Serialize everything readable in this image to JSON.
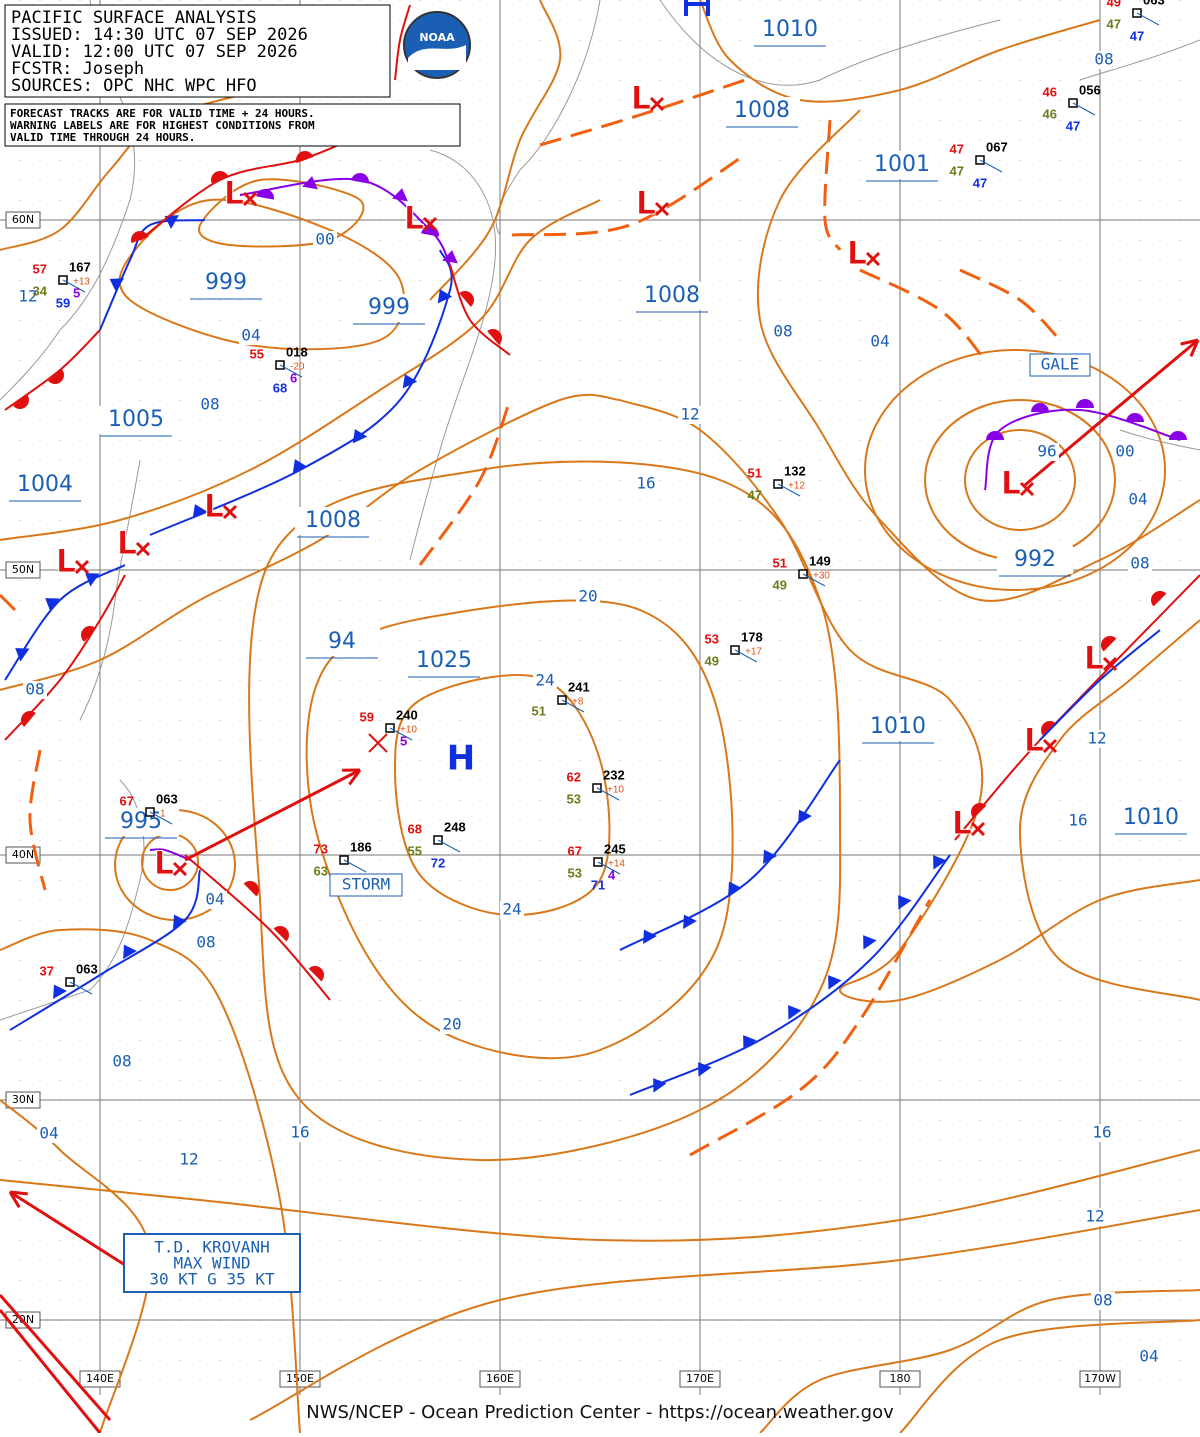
{
  "header": {
    "lines": [
      "PACIFIC SURFACE ANALYSIS",
      "ISSUED: 14:30 UTC 07 SEP 2026",
      "VALID:  12:00 UTC 07 SEP 2026",
      "FCSTR:  Joseph",
      "SOURCES: OPC NHC WPC HFO"
    ]
  },
  "notice": [
    "FORECAST TRACKS ARE FOR VALID TIME + 24 HOURS.",
    "WARNING LABELS ARE FOR HIGHEST CONDITIONS FROM",
    "VALID TIME THROUGH 24 HOURS."
  ],
  "logo": "NOAA",
  "pressure_labels": [
    "1010",
    "1008",
    "1001",
    "999",
    "999",
    "1008",
    "1005",
    "1004",
    "1008",
    "94",
    "1025",
    "992",
    "1010",
    "995",
    "1010"
  ],
  "isobar_labels": [
    "08",
    "00",
    "04",
    "08",
    "12",
    "16",
    "08",
    "04",
    "96",
    "00",
    "04",
    "08",
    "12",
    "20",
    "08",
    "24",
    "24",
    "04",
    "08",
    "12",
    "16",
    "20",
    "08",
    "04",
    "16",
    "12",
    "16",
    "12",
    "08",
    "04"
  ],
  "low_symbol": "L",
  "high_symbol": "H",
  "warnings": [
    "GALE",
    "STORM"
  ],
  "krovanh_box": [
    "T.D. KROVANH",
    "MAX WIND",
    "30 KT G 35 KT"
  ],
  "grid_labels": {
    "lat": [
      "60N",
      "50N",
      "40N",
      "30N",
      "20N"
    ],
    "lon": [
      "140E",
      "150E",
      "160E",
      "170E",
      "180",
      "170W"
    ]
  },
  "stations": [
    {
      "red": "57",
      "black": "167",
      "tendency": "+13",
      "green": "34",
      "purple": "5",
      "blue": "59"
    },
    {
      "red": "55",
      "black": "018",
      "tendency": "-20",
      "purple": "6",
      "blue": "68"
    },
    {
      "red": "51",
      "black": "132",
      "tendency": "+12",
      "green": "47"
    },
    {
      "red": "51",
      "black": "149",
      "tendency": "+30",
      "green": "49"
    },
    {
      "red": "53",
      "black": "178",
      "tendency": "+17",
      "green": "49"
    },
    {
      "black": "241",
      "tendency": "+8",
      "green": "51"
    },
    {
      "red": "59",
      "black": "240",
      "tendency": "+10",
      "purple": "5"
    },
    {
      "red": "62",
      "black": "232",
      "tendency": "+10",
      "green": "53"
    },
    {
      "red": "68",
      "black": "248",
      "green": "55",
      "blue": "72"
    },
    {
      "red": "67",
      "black": "245",
      "tendency": "+14",
      "green": "53",
      "blue": "71",
      "purple": "4"
    },
    {
      "red": "73",
      "black": "186",
      "green": "63"
    },
    {
      "red": "67",
      "black": "063",
      "tendency": "1"
    },
    {
      "red": "37",
      "black": "063"
    },
    {
      "red": "47",
      "black": "067",
      "green": "47",
      "blue": "47"
    },
    {
      "red": "46",
      "black": "056",
      "green": "46",
      "blue": "47"
    },
    {
      "red": "49",
      "black": "063",
      "green": "47",
      "blue": "47"
    }
  ],
  "footer": "NWS/NCEP - Ocean Prediction Center - https://ocean.weather.gov"
}
